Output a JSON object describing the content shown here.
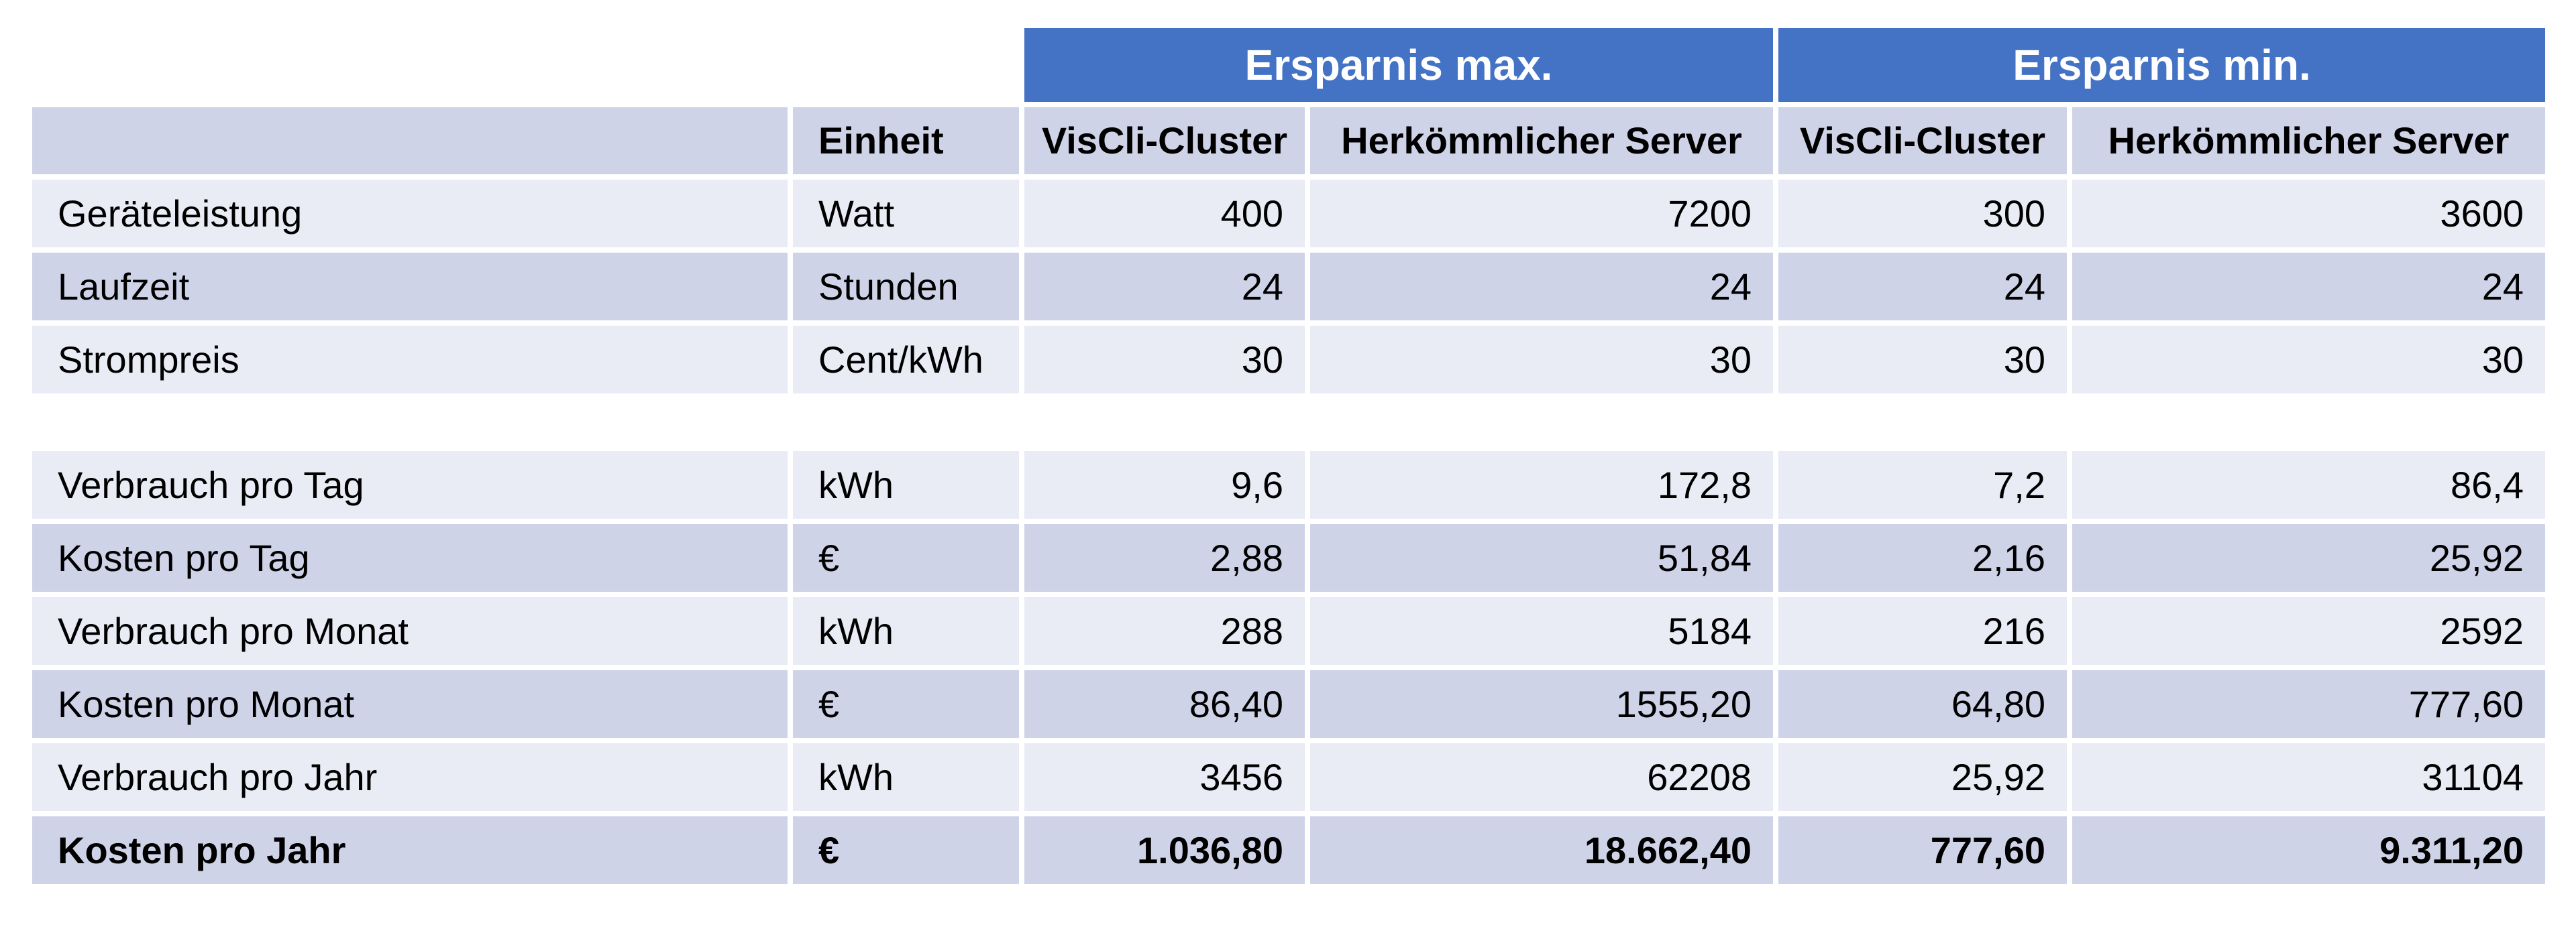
{
  "colors": {
    "group_header_bg": "#4472C4",
    "group_header_text": "#ffffff",
    "band_dark": "#CED3E8",
    "band_light": "#E9EBF5",
    "body_text": "#000000",
    "page_bg": "#ffffff"
  },
  "table": {
    "group_headers": [
      {
        "label": "Ersparnis max."
      },
      {
        "label": "Ersparnis min."
      }
    ],
    "column_headers": [
      "",
      "Einheit",
      "VisCli-Cluster",
      "Herkömmlicher Server",
      "VisCli-Cluster",
      "Herkömmlicher Server"
    ],
    "rows": [
      {
        "label": "Geräteleistung",
        "unit": "Watt",
        "values": [
          "400",
          "7200",
          "300",
          "3600"
        ]
      },
      {
        "label": "Laufzeit",
        "unit": "Stunden",
        "values": [
          "24",
          "24",
          "24",
          "24"
        ]
      },
      {
        "label": "Strompreis",
        "unit": "Cent/kWh",
        "values": [
          "30",
          "30",
          "30",
          "30"
        ]
      },
      {
        "label": "Verbrauch pro Tag",
        "unit": "kWh",
        "values": [
          "9,6",
          "172,8",
          "7,2",
          "86,4"
        ]
      },
      {
        "label": "Kosten pro Tag",
        "unit": "€",
        "values": [
          "2,88",
          "51,84",
          "2,16",
          "25,92"
        ]
      },
      {
        "label": "Verbrauch pro Monat",
        "unit": "kWh",
        "values": [
          "288",
          "5184",
          "216",
          "2592"
        ]
      },
      {
        "label": "Kosten pro Monat",
        "unit": "€",
        "values": [
          "86,40",
          "1555,20",
          "64,80",
          "777,60"
        ]
      },
      {
        "label": "Verbrauch pro Jahr",
        "unit": "kWh",
        "values": [
          "3456",
          "62208",
          "25,92",
          "31104"
        ]
      },
      {
        "label": "Kosten pro Jahr",
        "unit": "€",
        "values": [
          "1.036,80",
          "18.662,40",
          "777,60",
          "9.311,20"
        ]
      }
    ]
  },
  "chart_data": {
    "type": "table",
    "title": "",
    "group_headers": [
      "Ersparnis max.",
      "Ersparnis min."
    ],
    "columns": [
      "Einheit",
      "VisCli-Cluster (max)",
      "Herkömmlicher Server (max)",
      "VisCli-Cluster (min)",
      "Herkömmlicher Server (min)"
    ],
    "categories": [
      "Geräteleistung",
      "Laufzeit",
      "Strompreis",
      "Verbrauch pro Tag",
      "Kosten pro Tag",
      "Verbrauch pro Monat",
      "Kosten pro Monat",
      "Verbrauch pro Jahr",
      "Kosten pro Jahr"
    ],
    "units": [
      "Watt",
      "Stunden",
      "Cent/kWh",
      "kWh",
      "€",
      "kWh",
      "€",
      "kWh",
      "€"
    ],
    "series": [
      {
        "name": "VisCli-Cluster (Ersparnis max.)",
        "values": [
          400,
          24,
          30,
          9.6,
          2.88,
          288,
          86.4,
          3456,
          1036.8
        ]
      },
      {
        "name": "Herkömmlicher Server (Ersparnis max.)",
        "values": [
          7200,
          24,
          30,
          172.8,
          51.84,
          5184,
          1555.2,
          62208,
          18662.4
        ]
      },
      {
        "name": "VisCli-Cluster (Ersparnis min.)",
        "values": [
          300,
          24,
          30,
          7.2,
          2.16,
          216,
          64.8,
          25.92,
          777.6
        ]
      },
      {
        "name": "Herkömmlicher Server (Ersparnis min.)",
        "values": [
          3600,
          24,
          30,
          86.4,
          25.92,
          2592,
          777.6,
          31104,
          9311.2
        ]
      }
    ]
  }
}
